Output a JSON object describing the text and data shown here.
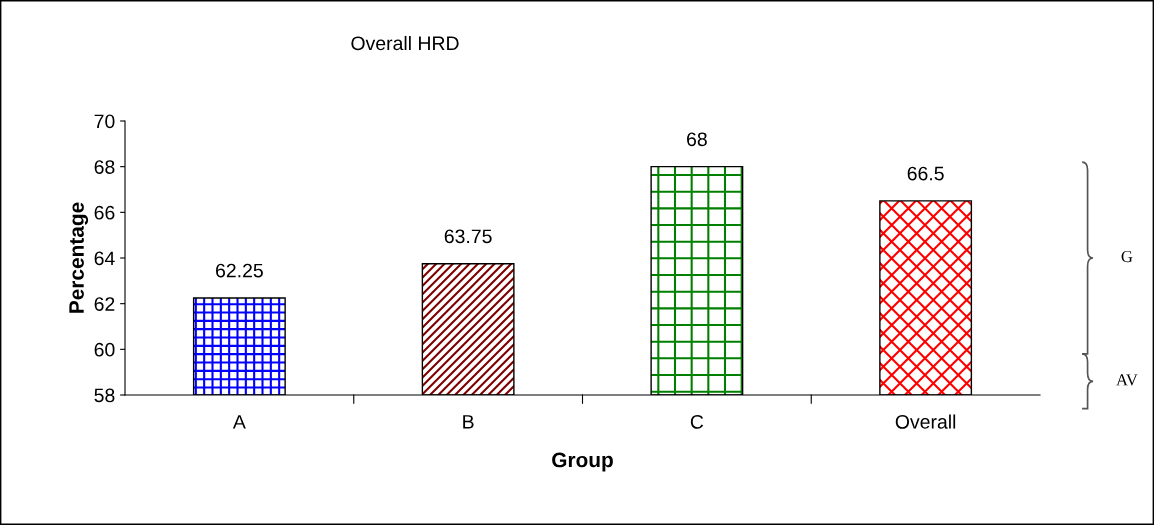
{
  "chart_data": {
    "type": "bar",
    "title": "Overall HRD",
    "xlabel": "Group",
    "ylabel": "Percentage",
    "categories": [
      "A",
      "B",
      "C",
      "Overall"
    ],
    "values": [
      62.25,
      63.75,
      68,
      66.5
    ],
    "colors": [
      "#0000ff",
      "#800000",
      "#008000",
      "#ff0000"
    ],
    "ylim": [
      58,
      70
    ],
    "yticks": [
      58,
      60,
      62,
      64,
      66,
      68,
      70
    ],
    "data_labels": true,
    "grid": false,
    "legend": false,
    "annotations": [
      "G",
      "AV"
    ]
  }
}
